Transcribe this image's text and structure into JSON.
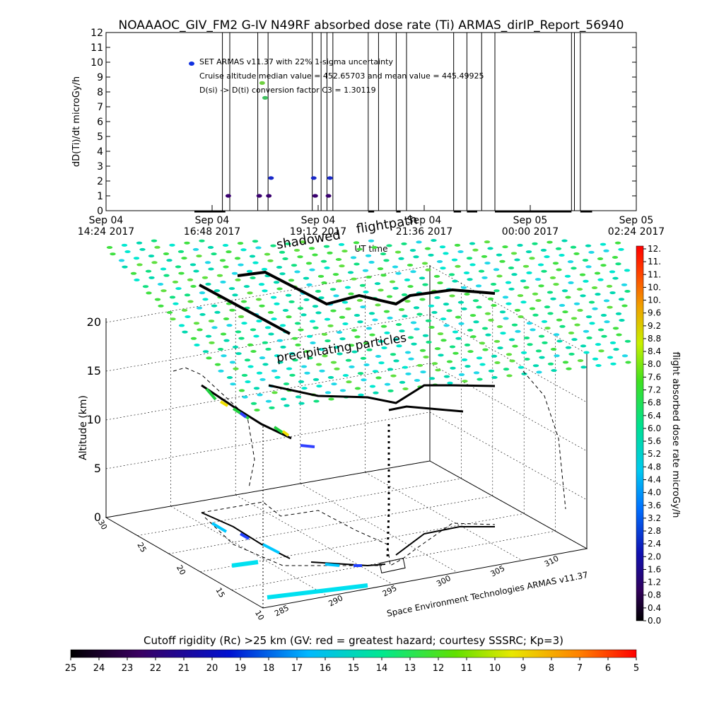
{
  "page_title": "NOAAAOC_GIV_FM2 G-IV    N49RF  absorbed dose rate (Ti) ARMAS_dirIP_Report_56940",
  "chart_data": [
    {
      "type": "line",
      "ylabel": "dD(Ti)/dt microGy/h",
      "xlabel": "UT time",
      "ylim": [
        0,
        12
      ],
      "yticks": [
        0,
        1,
        2,
        3,
        4,
        5,
        6,
        7,
        8,
        9,
        10,
        11,
        12
      ],
      "xticks": [
        {
          "line1": "Sep 04",
          "line2": "14:24 2017"
        },
        {
          "line1": "Sep 04",
          "line2": "16:48 2017"
        },
        {
          "line1": "Sep 04",
          "line2": "19:12 2017"
        },
        {
          "line1": "Sep 04",
          "line2": "21:36 2017"
        },
        {
          "line1": "Sep 05",
          "line2": "00:00 2017"
        },
        {
          "line1": "Sep 05",
          "line2": "02:24 2017"
        }
      ],
      "annotations": [
        "SET ARMAS v11.37 with 22% 1-sigma uncertainty",
        "Cruise altitude median value = 452.65703 and mean value = 445.49925",
        "D(si) -> D(ti) conversion factor C3 = 1.30119"
      ],
      "points": [
        {
          "t": "Sep 04 17:10",
          "y": 1.0
        },
        {
          "t": "Sep 04 17:52",
          "y": 1.0
        },
        {
          "t": "Sep 04 17:56",
          "y": 8.6
        },
        {
          "t": "Sep 04 18:00",
          "y": 7.6
        },
        {
          "t": "Sep 04 18:05",
          "y": 1.0
        },
        {
          "t": "Sep 04 18:08",
          "y": 2.2
        },
        {
          "t": "Sep 04 19:06",
          "y": 2.2
        },
        {
          "t": "Sep 04 19:08",
          "y": 1.0
        },
        {
          "t": "Sep 04 19:26",
          "y": 1.0
        },
        {
          "t": "Sep 04 19:28",
          "y": 2.2
        }
      ]
    },
    {
      "type": "scatter",
      "title": "",
      "zlabel": "Altitude (km)",
      "zticks": [
        0,
        5,
        10,
        15,
        20
      ],
      "lat_ticks": [
        10,
        15,
        20,
        25,
        30
      ],
      "lon_ticks": [
        285,
        290,
        295,
        300,
        305,
        310
      ],
      "labels": {
        "shadowed": "shadowed",
        "flightpath": "flightpath",
        "precipitating": "precipitating particles",
        "credit": "Space Environment Technologies ARMAS v11.37"
      },
      "colorbar": {
        "label": "flight absorbed dose rate microGy/h",
        "ticks": [
          "0.0",
          "0.4",
          "0.8",
          "1.2",
          "1.6",
          "2.0",
          "2.4",
          "2.8",
          "3.2",
          "3.6",
          "4.0",
          "4.4",
          "4.8",
          "5.2",
          "5.6",
          "6.0",
          "6.4",
          "6.8",
          "7.2",
          "7.6",
          "8.0",
          "8.4",
          "8.8",
          "9.2",
          "9.6",
          "10.",
          "10.",
          "11.",
          "11.",
          "12."
        ]
      }
    },
    {
      "type": "heatmap",
      "title": "Cutoff rigidity (Rc) >25 km (GV: red = greatest hazard; courtesy SSSRC; Kp=3)",
      "ticks": [
        "25",
        "24",
        "23",
        "22",
        "21",
        "20",
        "19",
        "18",
        "17",
        "16",
        "15",
        "14",
        "13",
        "12",
        "11",
        "10",
        "9",
        "8",
        "7",
        "6",
        "5"
      ]
    }
  ]
}
